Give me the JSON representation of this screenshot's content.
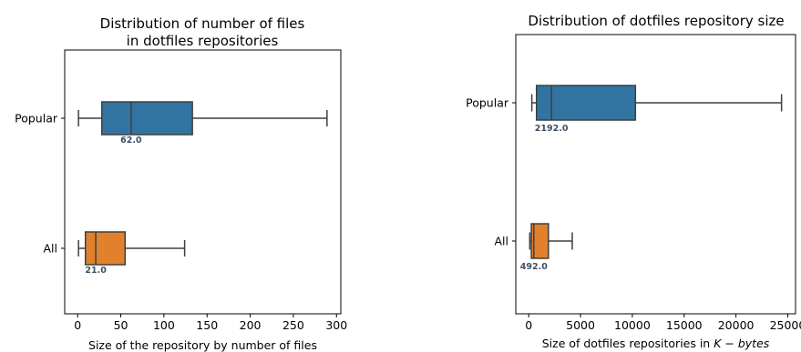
{
  "chart_data": [
    {
      "type": "boxplot",
      "orientation": "horizontal",
      "title_lines": [
        "Distribution of number of files",
        "in dotfiles repositories"
      ],
      "xlabel": "Size of the repository by number of files",
      "xlim": [
        -15,
        305
      ],
      "xticks": [
        0,
        50,
        100,
        150,
        200,
        250,
        300
      ],
      "xtick_labels": [
        "0",
        "50",
        "100",
        "150",
        "200",
        "250",
        "300"
      ],
      "categories": [
        "Popular",
        "All"
      ],
      "series": [
        {
          "category": "Popular",
          "whisker_low": 1,
          "q1": 28,
          "median": 62,
          "q3": 133,
          "whisker_high": 289,
          "color": "#3274a1",
          "median_label": "62.0"
        },
        {
          "category": "All",
          "whisker_low": 1,
          "q1": 9,
          "median": 21,
          "q3": 55,
          "whisker_high": 124,
          "color": "#e1812c",
          "median_label": "21.0"
        }
      ]
    },
    {
      "type": "boxplot",
      "orientation": "horizontal",
      "title_lines": [
        "Distribution of dotfiles repository size"
      ],
      "xlabel": "Size of dotfiles repositories in ",
      "xlabel_math": "K − bytes",
      "xlim": [
        -1250,
        25750
      ],
      "xticks": [
        0,
        5000,
        10000,
        15000,
        20000,
        25000
      ],
      "xtick_labels": [
        "0",
        "5000",
        "10000",
        "15000",
        "20000",
        "25000"
      ],
      "categories": [
        "Popular",
        "All"
      ],
      "series": [
        {
          "category": "Popular",
          "whisker_low": 300,
          "q1": 750,
          "median": 2192,
          "q3": 10300,
          "whisker_high": 24400,
          "color": "#3274a1",
          "median_label": "2192.0"
        },
        {
          "category": "All",
          "whisker_low": 100,
          "q1": 250,
          "median": 492,
          "q3": 1900,
          "whisker_high": 4200,
          "color": "#e1812c",
          "median_label": "492.0"
        }
      ]
    }
  ]
}
